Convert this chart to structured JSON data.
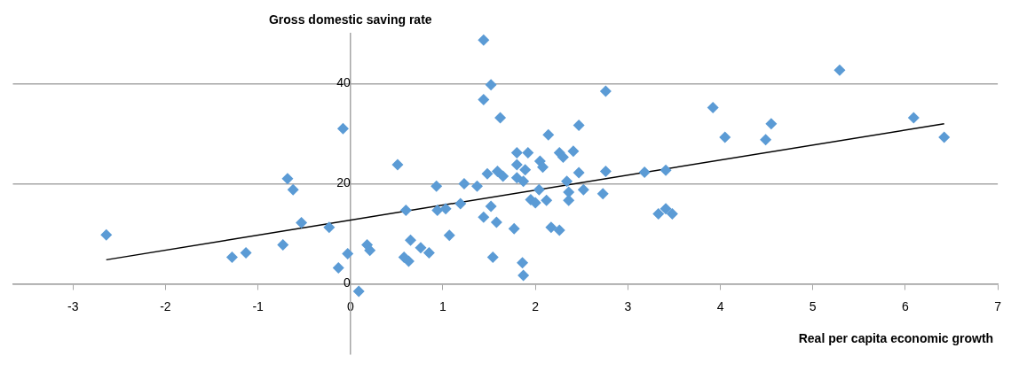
{
  "chart_data": {
    "type": "scatter",
    "xlabel": "Real per capita economic growth",
    "ylabel": "Gross domestic saving rate",
    "xlim": [
      -3.65,
      7
    ],
    "xticks": [
      -3,
      -2,
      -1,
      0,
      1,
      2,
      3,
      4,
      5,
      6,
      7
    ],
    "ylim": [
      -14,
      50
    ],
    "yticks": [
      0,
      20,
      40
    ],
    "grid": "y",
    "legend": false,
    "series": [
      {
        "color": "#5b9bd5",
        "marker": "diamond",
        "x": [
          -2.64,
          -1.28,
          -1.13,
          -0.73,
          -0.68,
          -0.62,
          -0.53,
          -0.23,
          -0.13,
          -0.08,
          -0.03,
          0.09,
          0.18,
          0.21,
          0.51,
          0.6,
          0.58,
          0.63,
          0.65,
          0.76,
          0.85,
          0.93,
          0.94,
          1.03,
          1.07,
          1.19,
          1.23,
          1.37,
          1.44,
          1.44,
          1.44,
          1.48,
          1.52,
          1.52,
          1.54,
          1.58,
          1.59,
          1.62,
          1.65,
          1.77,
          1.8,
          1.8,
          1.8,
          1.87,
          1.89,
          1.92,
          1.86,
          1.87,
          1.95,
          2.0,
          2.04,
          2.05,
          2.08,
          2.12,
          2.14,
          2.17,
          2.26,
          2.3,
          2.26,
          2.34,
          2.36,
          2.36,
          2.41,
          2.47,
          2.47,
          2.52,
          2.73,
          2.76,
          2.76,
          3.18,
          3.41,
          3.33,
          3.41,
          3.48,
          3.92,
          4.05,
          4.49,
          4.55,
          5.29,
          6.09,
          6.42
        ],
        "values": [
          9.8,
          5.3,
          6.2,
          7.8,
          21,
          18.8,
          12.2,
          11.3,
          3.2,
          31,
          6,
          -1.5,
          7.8,
          6.7,
          23.8,
          14.7,
          5.3,
          4.5,
          8.7,
          7.2,
          6.2,
          19.5,
          14.7,
          15,
          9.7,
          16,
          20,
          19.5,
          48.7,
          36.8,
          13.3,
          22,
          39.8,
          15.5,
          5.3,
          12.3,
          22.5,
          33.2,
          21.5,
          11,
          26.2,
          23.8,
          21.2,
          20.5,
          22.8,
          26.2,
          4.2,
          1.7,
          16.8,
          16.2,
          18.8,
          24.5,
          23.3,
          16.7,
          29.8,
          11.3,
          26.2,
          25.3,
          10.7,
          20.5,
          18.3,
          16.7,
          26.5,
          22.2,
          31.7,
          18.8,
          18,
          22.5,
          38.5,
          22.3,
          22.7,
          14,
          15,
          14,
          35.2,
          29.3,
          28.8,
          32,
          42.7,
          33.2,
          29.3
        ]
      },
      {
        "color": "#000000",
        "type": "line",
        "marker": "none",
        "x": [
          -2.64,
          6.42
        ],
        "values": [
          4.8,
          32.0
        ]
      }
    ]
  }
}
